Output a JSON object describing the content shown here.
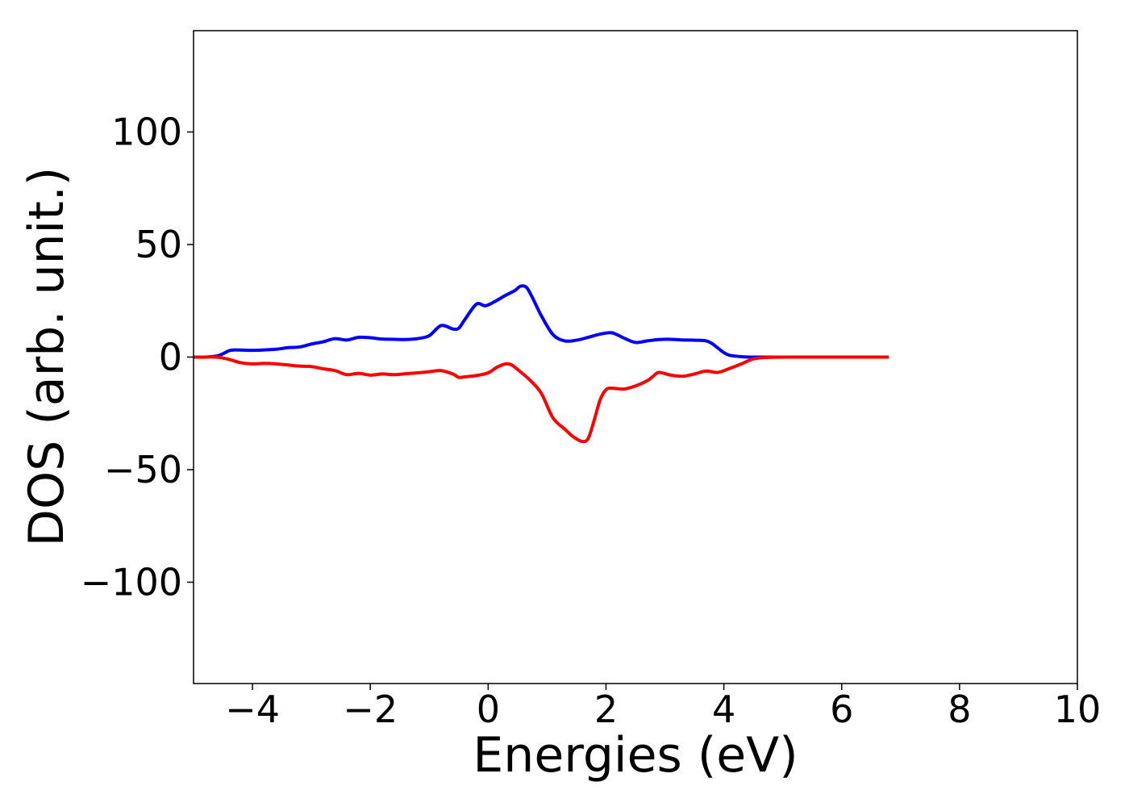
{
  "chart_data": {
    "type": "line",
    "title": "",
    "xlabel": "Energies (eV)",
    "ylabel": "DOS (arb. unit.)",
    "xlim": [
      -5,
      10
    ],
    "ylim": [
      -145,
      145
    ],
    "xticks": [
      -4,
      -2,
      0,
      2,
      4,
      6,
      8,
      10
    ],
    "xtick_labels": [
      "−4",
      "−2",
      "0",
      "2",
      "4",
      "6",
      "8",
      "10"
    ],
    "yticks": [
      -100,
      -50,
      0,
      50,
      100
    ],
    "ytick_labels": [
      "−100",
      "−50",
      "0",
      "50",
      "100"
    ],
    "grid": false,
    "legend": "none",
    "series": [
      {
        "color": "#0000ff",
        "x": [
          -5.0,
          -4.8,
          -4.6,
          -4.5,
          -4.4,
          -4.3,
          -4.0,
          -3.6,
          -3.4,
          -3.2,
          -3.0,
          -2.8,
          -2.6,
          -2.4,
          -2.2,
          -2.0,
          -1.8,
          -1.6,
          -1.4,
          -1.2,
          -1.0,
          -0.8,
          -0.6,
          -0.5,
          -0.4,
          -0.2,
          -0.05,
          0.1,
          0.3,
          0.45,
          0.55,
          0.65,
          0.75,
          0.9,
          1.1,
          1.3,
          1.5,
          1.7,
          1.9,
          2.1,
          2.3,
          2.5,
          2.7,
          2.9,
          3.1,
          3.3,
          3.5,
          3.7,
          3.8,
          3.9,
          4.0,
          4.1,
          4.3,
          4.5,
          5.0,
          6.0,
          6.8
        ],
        "values": [
          0,
          0,
          0.5,
          1.5,
          2.8,
          3.2,
          3.0,
          3.5,
          4.2,
          4.5,
          5.8,
          6.8,
          8.2,
          7.6,
          8.8,
          8.6,
          8.0,
          7.9,
          7.8,
          8.2,
          9.5,
          14.0,
          12.5,
          12.8,
          16.5,
          23.5,
          22.8,
          24.5,
          27.5,
          29.5,
          31.5,
          31.0,
          26.5,
          18.5,
          10.0,
          7.2,
          7.5,
          8.8,
          10.2,
          10.8,
          8.5,
          6.5,
          7.2,
          7.8,
          7.9,
          7.6,
          7.5,
          7.2,
          6.0,
          4.0,
          2.0,
          0.8,
          0.2,
          0,
          0,
          0,
          0
        ]
      },
      {
        "color": "#ff0000",
        "x": [
          -5.0,
          -4.8,
          -4.6,
          -4.4,
          -4.2,
          -4.0,
          -3.8,
          -3.6,
          -3.4,
          -3.2,
          -3.0,
          -2.8,
          -2.6,
          -2.4,
          -2.2,
          -2.0,
          -1.8,
          -1.6,
          -1.4,
          -1.2,
          -1.0,
          -0.8,
          -0.6,
          -0.5,
          -0.4,
          -0.2,
          0.0,
          0.15,
          0.3,
          0.4,
          0.5,
          0.7,
          0.9,
          1.1,
          1.3,
          1.45,
          1.6,
          1.7,
          1.8,
          1.9,
          2.0,
          2.1,
          2.3,
          2.5,
          2.7,
          2.8,
          2.9,
          3.1,
          3.3,
          3.5,
          3.7,
          3.9,
          4.1,
          4.3,
          4.5,
          4.7,
          5.0,
          6.0,
          6.8
        ],
        "values": [
          0,
          0,
          0,
          -1.0,
          -2.5,
          -3.0,
          -2.8,
          -3.0,
          -3.5,
          -4.0,
          -4.2,
          -5.2,
          -6.0,
          -7.8,
          -7.2,
          -8.0,
          -7.5,
          -7.8,
          -7.4,
          -7.0,
          -6.5,
          -6.0,
          -7.5,
          -9.0,
          -8.8,
          -8.2,
          -7.0,
          -4.5,
          -3.0,
          -3.5,
          -5.5,
          -10.0,
          -16.0,
          -27.0,
          -32.0,
          -35.5,
          -37.5,
          -36.0,
          -28.0,
          -19.0,
          -14.5,
          -13.8,
          -14.2,
          -12.8,
          -10.5,
          -8.5,
          -6.8,
          -8.0,
          -8.5,
          -7.5,
          -6.2,
          -6.8,
          -5.0,
          -3.0,
          -0.8,
          -0.2,
          0,
          0,
          0
        ]
      }
    ]
  }
}
